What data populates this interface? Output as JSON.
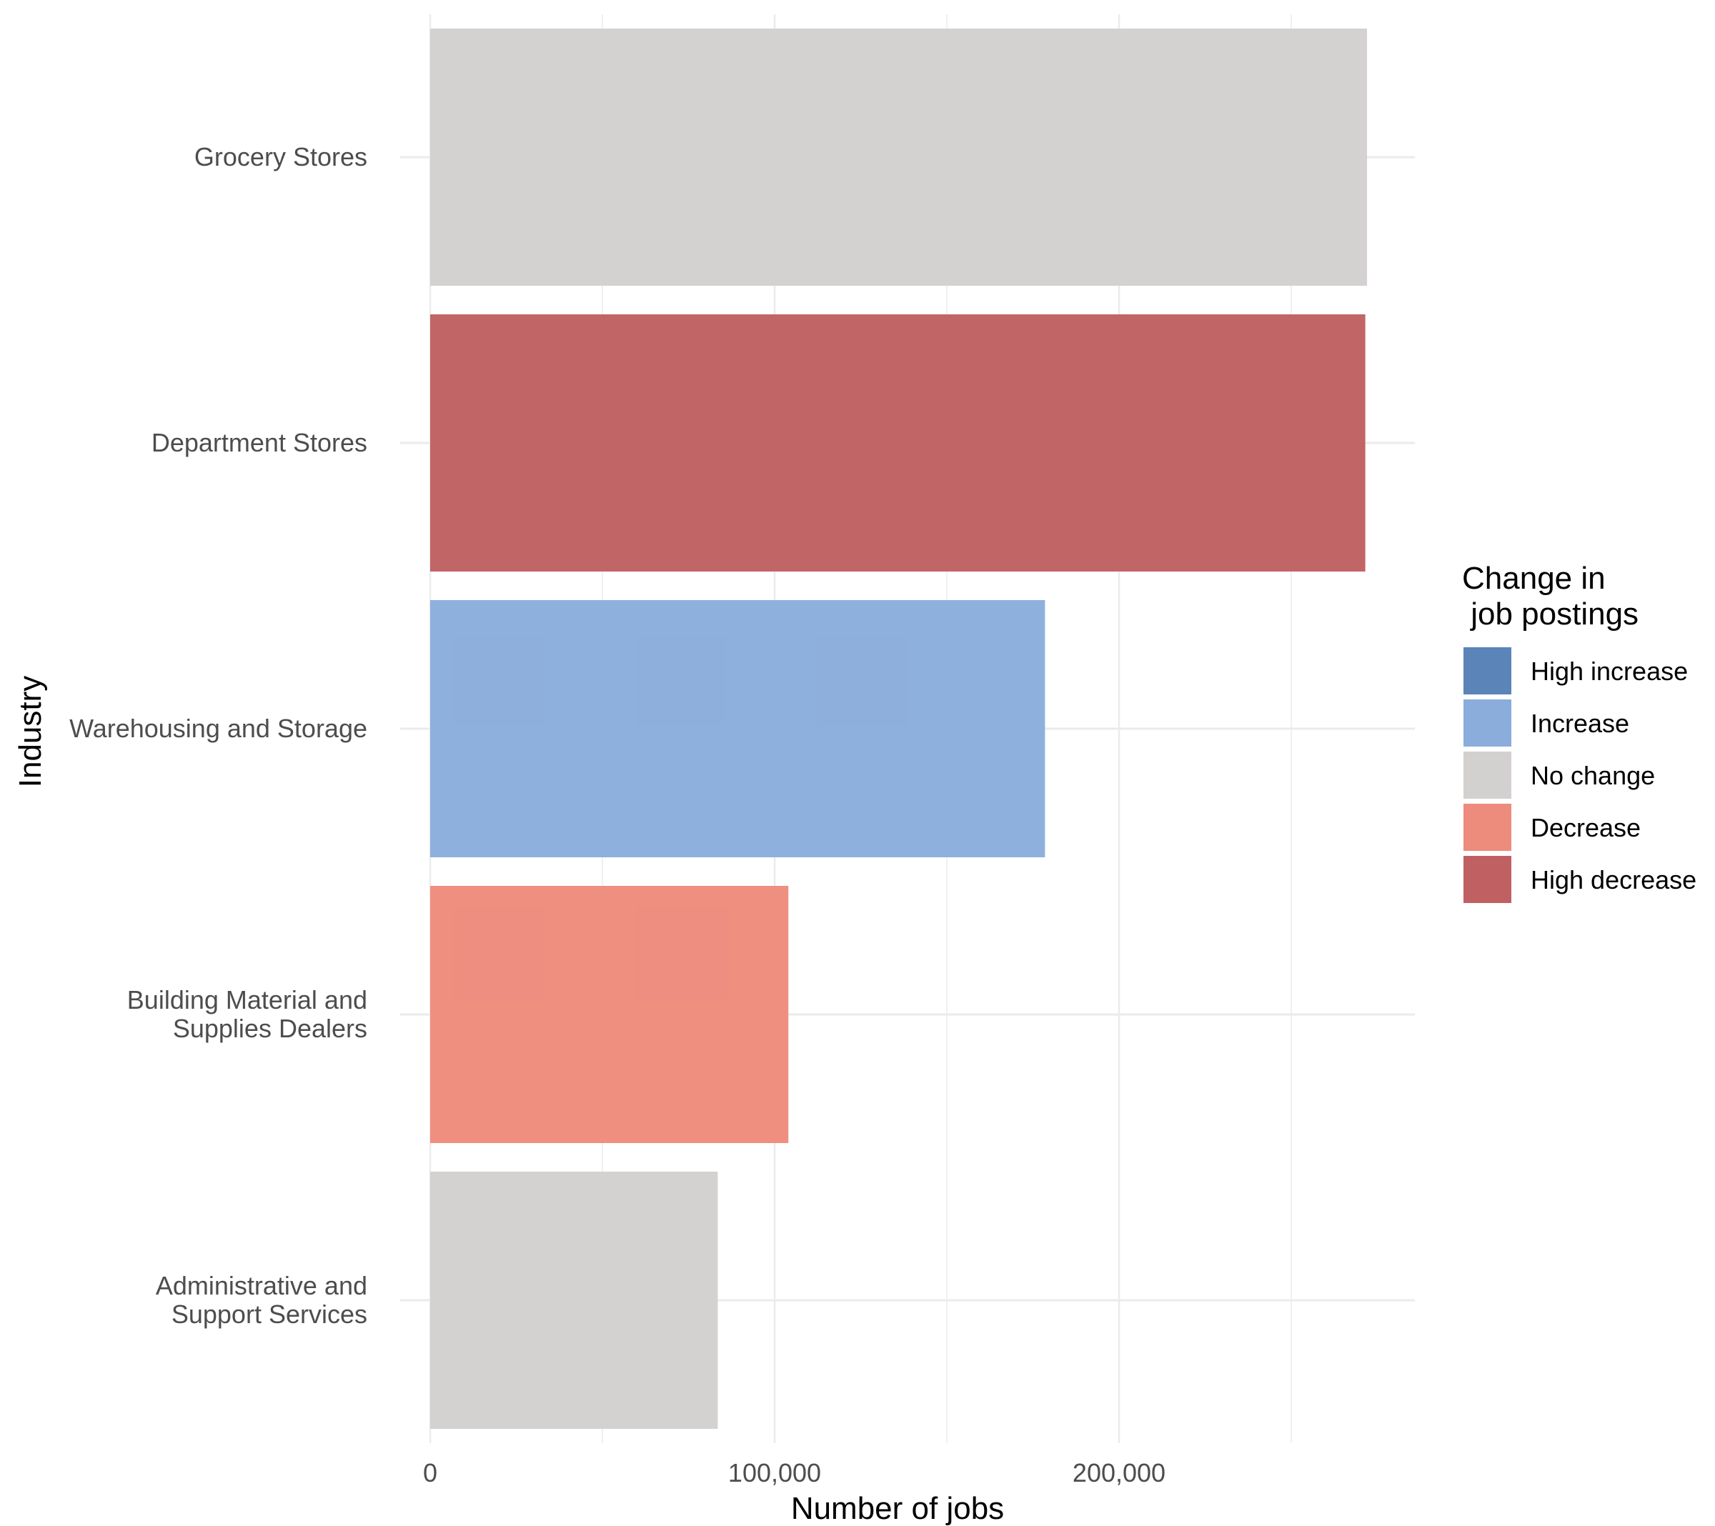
{
  "chart_data": {
    "type": "bar",
    "orientation": "horizontal",
    "title": "",
    "xlabel": "Number of jobs",
    "ylabel": "Industry",
    "xlim": [
      0,
      285000
    ],
    "x_ticks": [
      0,
      100000,
      200000
    ],
    "x_tick_labels": [
      "0",
      "100,000",
      "200,000"
    ],
    "grid": true,
    "legend_position": "right",
    "categories": [
      "Grocery Stores",
      "Department Stores",
      "Warehousing and Storage",
      "Building Material and Supplies Dealers",
      "Administrative and Support Services"
    ],
    "category_label_lines": [
      [
        "Grocery Stores"
      ],
      [
        "Department Stores"
      ],
      [
        "Warehousing and Storage"
      ],
      [
        "Building Material and",
        "Supplies Dealers"
      ],
      [
        "Administrative and",
        "Support Services"
      ]
    ],
    "values": [
      272000,
      271500,
      178500,
      104000,
      83500
    ],
    "change": [
      "No change",
      "High decrease",
      "Increase",
      "Decrease",
      "No change"
    ],
    "legend": {
      "title_lines": [
        "Change in",
        " job postings"
      ],
      "items": [
        {
          "label": "High increase",
          "color": "#5b84b8"
        },
        {
          "label": "Increase",
          "color": "#8aaddb"
        },
        {
          "label": "No change",
          "color": "#d3d1d0"
        },
        {
          "label": "Decrease",
          "color": "#ed8b7c"
        },
        {
          "label": "High decrease",
          "color": "#c06062"
        }
      ]
    }
  }
}
